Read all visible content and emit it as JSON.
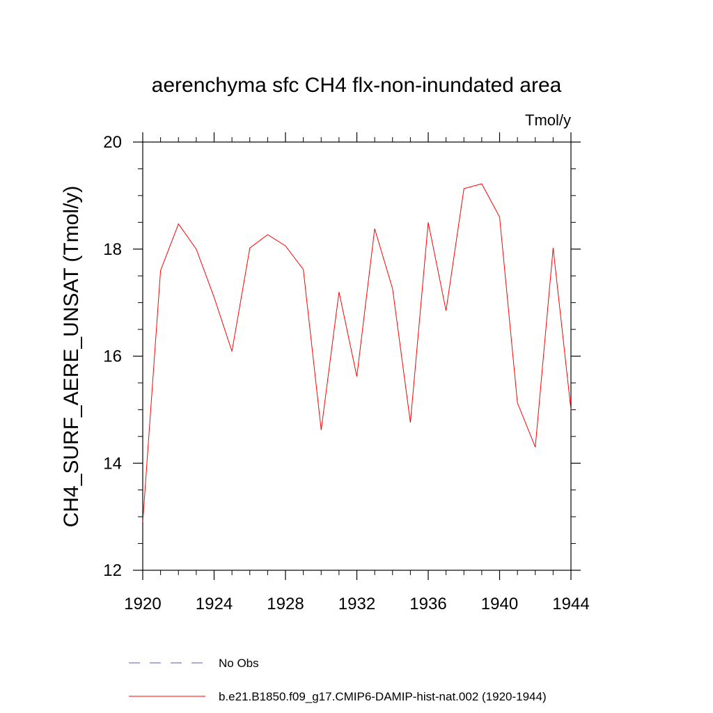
{
  "chart_data": {
    "type": "line",
    "title": "aerenchyma sfc CH4 flx-non-inundated area",
    "units_label": "Tmol/y",
    "ylabel": "CH4_SURF_AERE_UNSAT  (Tmol/y)",
    "xlabel": "",
    "xlim": [
      1920,
      1944
    ],
    "ylim": [
      12,
      20
    ],
    "x_ticks": [
      1920,
      1924,
      1928,
      1932,
      1936,
      1940,
      1944
    ],
    "y_ticks": [
      12,
      14,
      16,
      18,
      20
    ],
    "x_minor_step": 1,
    "y_minor_step": 0.5,
    "grid": false,
    "legend_position": "bottom",
    "series": [
      {
        "name": "b.e21.B1850.f09_g17.CMIP6-DAMIP-hist-nat.002 (1920-1944)",
        "color": "#ff0000",
        "dash": "solid",
        "x": [
          1920,
          1921,
          1922,
          1923,
          1924,
          1925,
          1926,
          1927,
          1928,
          1929,
          1930,
          1931,
          1932,
          1933,
          1934,
          1935,
          1936,
          1937,
          1938,
          1939,
          1940,
          1941,
          1942,
          1943,
          1944
        ],
        "values": [
          12.9,
          17.6,
          18.47,
          18.0,
          17.1,
          16.09,
          18.02,
          18.27,
          18.06,
          17.62,
          14.62,
          17.2,
          15.62,
          18.38,
          17.26,
          14.76,
          18.5,
          16.85,
          19.13,
          19.22,
          18.6,
          15.13,
          14.3,
          18.02,
          15.0
        ]
      }
    ],
    "legend": [
      {
        "label": "No Obs",
        "color": "#5555bb",
        "dash": "dashed"
      },
      {
        "label": "b.e21.B1850.f09_g17.CMIP6-DAMIP-hist-nat.002 (1920-1944)",
        "color": "#ff0000",
        "dash": "solid"
      }
    ]
  }
}
